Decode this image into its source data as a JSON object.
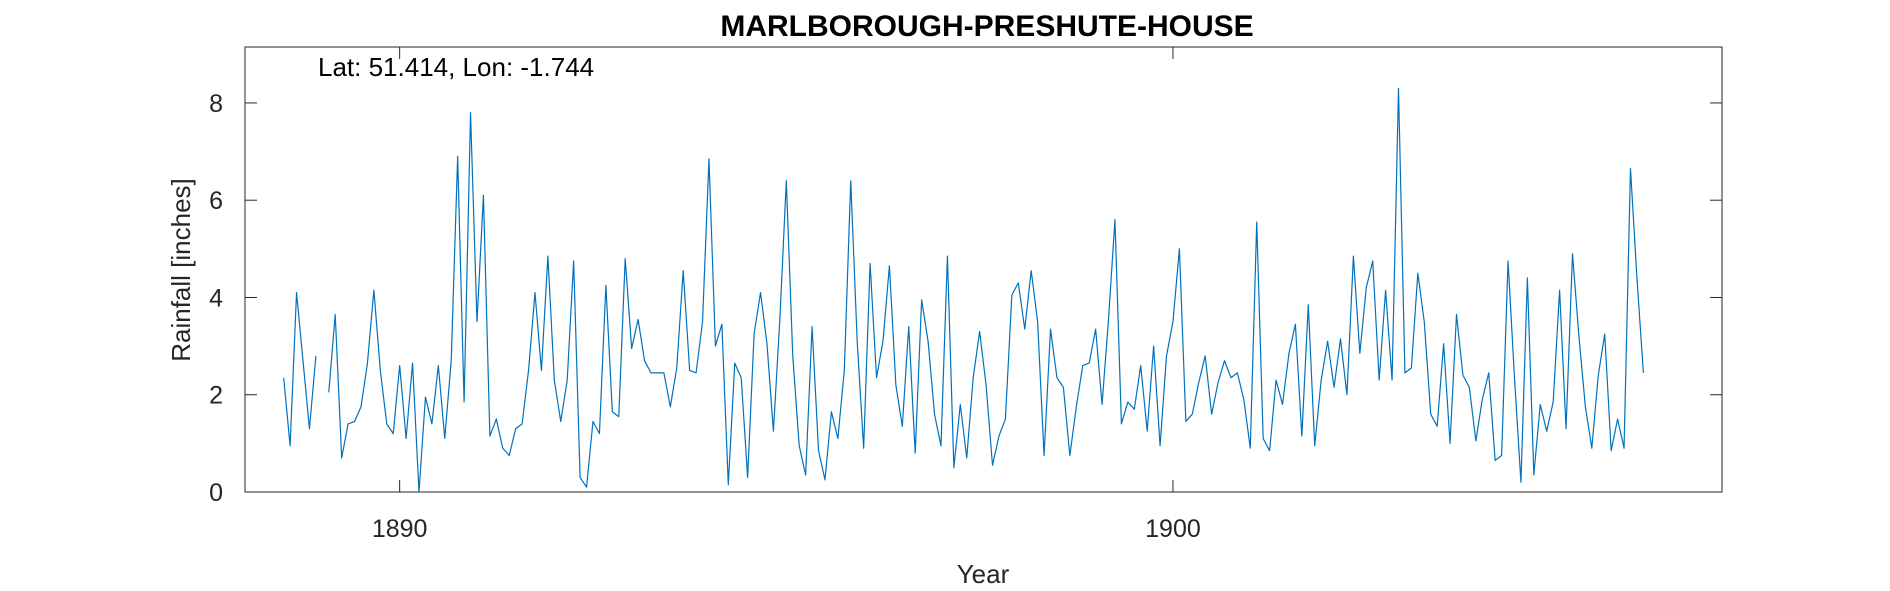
{
  "chart_data": {
    "type": "line",
    "title": "MARLBOROUGH-PRESHUTE-HOUSE",
    "annotation": "Lat: 51.414, Lon: -1.744",
    "xlabel": "Year",
    "ylabel": "Rainfall [inches]",
    "xlim": [
      1888.0,
      1907.1
    ],
    "ylim": [
      0,
      9.15
    ],
    "xticks": [
      1890,
      1900
    ],
    "yticks": [
      0,
      2,
      4,
      6,
      8
    ],
    "grid": false,
    "line_color": "#0072BD",
    "series": [
      {
        "start": 1888.5,
        "step_years": 0.083333,
        "values": [
          2.35,
          0.95,
          4.1,
          2.7,
          1.3,
          2.8,
          null,
          2.05,
          3.65,
          0.7,
          1.4,
          1.45,
          1.75,
          2.65,
          4.15,
          2.5,
          1.4,
          1.2,
          2.6,
          1.1,
          2.65,
          0.0,
          1.95,
          1.4,
          2.6,
          1.1,
          2.7,
          6.9,
          1.85,
          7.8,
          3.5,
          6.1,
          1.15,
          1.5,
          0.9,
          0.75,
          1.3,
          1.4,
          2.5,
          4.1,
          2.5,
          4.85,
          2.3,
          1.45,
          2.3,
          4.75,
          0.3,
          0.1,
          1.45,
          1.2,
          4.25,
          1.65,
          1.55,
          4.8,
          2.95,
          3.55,
          2.7,
          2.45,
          2.45,
          2.45,
          1.75,
          2.55,
          4.55,
          2.5,
          2.45,
          3.5,
          6.85,
          3.0,
          3.45,
          0.15,
          2.65,
          2.35,
          0.3,
          3.25,
          4.1,
          3.05,
          1.25,
          3.55,
          6.4,
          2.8,
          0.95,
          0.35,
          3.4,
          0.85,
          0.25,
          1.65,
          1.1,
          2.5,
          6.4,
          3.1,
          0.9,
          4.7,
          2.35,
          3.1,
          4.65,
          2.2,
          1.35,
          3.4,
          0.8,
          3.95,
          3.1,
          1.6,
          0.95,
          4.85,
          0.5,
          1.8,
          0.7,
          2.35,
          3.3,
          2.2,
          0.55,
          1.15,
          1.5,
          4.05,
          4.3,
          3.35,
          4.55,
          3.5,
          0.75,
          3.35,
          2.35,
          2.15,
          0.75,
          1.75,
          2.6,
          2.65,
          3.35,
          1.8,
          3.55,
          5.6,
          1.4,
          1.85,
          1.7,
          2.6,
          1.25,
          3.0,
          0.95,
          2.8,
          3.5,
          5.0,
          1.45,
          1.6,
          2.25,
          2.8,
          1.6,
          2.25,
          2.7,
          2.35,
          2.45,
          1.9,
          0.9,
          5.55,
          1.1,
          0.85,
          2.3,
          1.8,
          2.85,
          3.45,
          1.15,
          3.85,
          0.95,
          2.3,
          3.1,
          2.15,
          3.15,
          2.0,
          4.85,
          2.85,
          4.2,
          4.75,
          2.3,
          4.15,
          2.3,
          8.3,
          2.45,
          2.55,
          4.5,
          3.5,
          1.6,
          1.35,
          3.05,
          1.0,
          3.65,
          2.4,
          2.15,
          1.05,
          1.9,
          2.45,
          0.65,
          0.75,
          4.75,
          2.35,
          0.2,
          4.4,
          0.35,
          1.8,
          1.25,
          1.85,
          4.15,
          1.3,
          4.9,
          3.2,
          1.75,
          0.9,
          2.4,
          3.25,
          0.85,
          1.5,
          0.9,
          6.65,
          4.4,
          2.45
        ]
      }
    ]
  }
}
